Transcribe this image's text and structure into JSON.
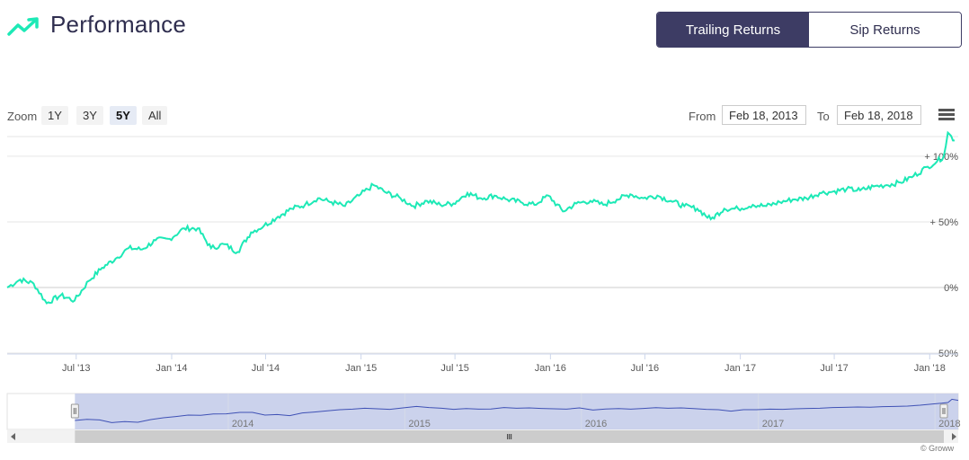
{
  "header": {
    "title": "Performance",
    "icon": "trending-up-icon",
    "tabs": [
      {
        "label": "Trailing Returns",
        "active": true
      },
      {
        "label": "Sip Returns",
        "active": false
      }
    ]
  },
  "zoom": {
    "label": "Zoom",
    "buttons": [
      {
        "label": "1Y",
        "selected": false
      },
      {
        "label": "3Y",
        "selected": false
      },
      {
        "label": "5Y",
        "selected": true
      },
      {
        "label": "All",
        "selected": false
      }
    ]
  },
  "range": {
    "from_label": "From",
    "from_value": "Feb 18, 2013",
    "to_label": "To",
    "to_value": "Feb 18, 2018"
  },
  "colors": {
    "series": "#1de9b6",
    "navigator_line": "#3f51b5",
    "navigator_mask": "#c5cdea",
    "active_tab": "#3d3c64"
  },
  "chart_data": {
    "type": "line",
    "x_range": [
      "2013-02-18",
      "2018-02-18"
    ],
    "ylim": [
      -50,
      115
    ],
    "y_ticks": [
      "-50%",
      "0%",
      "+ 50%",
      "+ 100%"
    ],
    "x_ticks": [
      "Jul '13",
      "Jan '14",
      "Jul '14",
      "Jan '15",
      "Jul '15",
      "Jan '16",
      "Jul '16",
      "Jan '17",
      "Jul '17",
      "Jan '18"
    ],
    "series": [
      {
        "x": [
          "2013-02-18",
          "2013-03-15",
          "2013-04-10",
          "2013-05-05",
          "2013-06-01",
          "2013-06-28",
          "2013-07-25",
          "2013-08-20",
          "2013-09-15",
          "2013-10-10",
          "2013-11-05",
          "2013-12-01",
          "2013-12-28",
          "2014-01-25",
          "2014-02-20",
          "2014-03-18",
          "2014-04-12",
          "2014-05-08",
          "2014-06-03",
          "2014-06-28",
          "2014-07-25",
          "2014-08-20",
          "2014-09-15",
          "2014-10-10",
          "2014-11-05",
          "2014-12-01",
          "2014-12-28",
          "2015-01-25",
          "2015-02-20",
          "2015-03-18",
          "2015-04-12",
          "2015-05-08",
          "2015-06-03",
          "2015-06-28",
          "2015-07-25",
          "2015-08-20",
          "2015-09-15",
          "2015-10-10",
          "2015-11-05",
          "2015-12-01",
          "2015-12-28",
          "2016-01-25",
          "2016-02-20",
          "2016-03-18",
          "2016-04-12",
          "2016-05-08",
          "2016-06-03",
          "2016-06-28",
          "2016-07-25",
          "2016-08-20",
          "2016-09-15",
          "2016-10-10",
          "2016-11-05",
          "2016-12-01",
          "2016-12-28",
          "2017-01-25",
          "2017-02-20",
          "2017-03-18",
          "2017-04-12",
          "2017-05-08",
          "2017-06-03",
          "2017-06-28",
          "2017-07-25",
          "2017-08-20",
          "2017-09-15",
          "2017-10-10",
          "2017-11-05",
          "2017-12-01",
          "2017-12-28",
          "2018-01-15",
          "2018-01-28",
          "2018-02-05",
          "2018-02-18"
        ],
        "values": [
          0,
          6,
          3,
          -12,
          -6,
          -10,
          5,
          15,
          22,
          30,
          29,
          36,
          37,
          45,
          45,
          30,
          33,
          27,
          42,
          47,
          54,
          60,
          63,
          68,
          65,
          62,
          70,
          78,
          72,
          68,
          62,
          66,
          63,
          64,
          72,
          68,
          70,
          67,
          65,
          63,
          70,
          58,
          64,
          66,
          63,
          67,
          71,
          68,
          70,
          66,
          62,
          60,
          52,
          60,
          60,
          63,
          62,
          65,
          67,
          68,
          72,
          73,
          75,
          74,
          77,
          78,
          80,
          85,
          92,
          96,
          100,
          118,
          112
        ]
      }
    ],
    "navigator": {
      "labels": [
        "2014",
        "2015",
        "2016",
        "2017",
        "2018"
      ]
    }
  },
  "credit": "© Groww"
}
